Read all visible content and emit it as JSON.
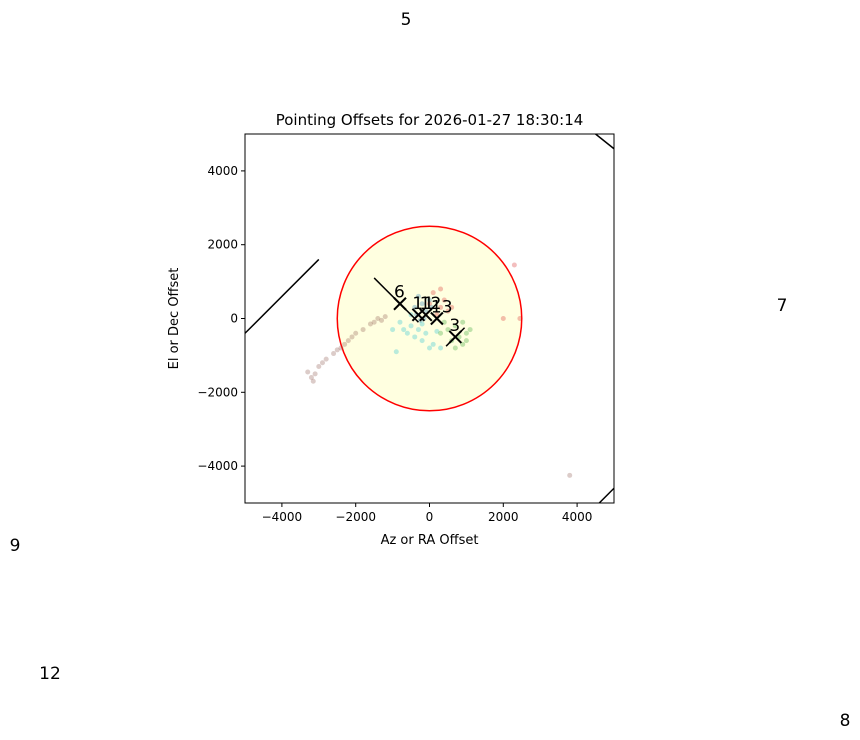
{
  "chart_data": {
    "type": "scatter",
    "title": "Pointing Offsets for 2026-01-27 18:30:14",
    "xlabel": "Az or RA Offset",
    "ylabel": "El or Dec Offset",
    "xlim": [
      -5000,
      5000
    ],
    "ylim": [
      -5000,
      5000
    ],
    "xticks": [
      {
        "value": -4000,
        "label": "−4000"
      },
      {
        "value": -2000,
        "label": "−2000"
      },
      0,
      2000,
      4000
    ],
    "yticks": [
      {
        "value": -4000,
        "label": "−4000"
      },
      {
        "value": -2000,
        "label": "−2000"
      },
      0,
      2000,
      4000
    ],
    "circle": {
      "radius": 2500,
      "color": "#ff0000",
      "fill": "#ffffe0"
    },
    "series": [
      {
        "color": "#8c564b",
        "x": [
          -3200,
          -3100,
          -3000,
          -2900,
          -2800,
          -2600,
          -2500,
          -2400,
          -2300,
          -2200,
          -2100,
          -2000,
          -1800,
          -1600,
          -1500,
          -1400,
          -1300,
          -1200,
          -3300,
          -3150,
          3800
        ],
        "values": [
          -1600,
          -1500,
          -1300,
          -1200,
          -1100,
          -950,
          -850,
          -800,
          -700,
          -600,
          -500,
          -400,
          -300,
          -150,
          -100,
          0,
          -50,
          50,
          -1450,
          -1700,
          -4250
        ]
      },
      {
        "color": "#17becf",
        "x": [
          -800,
          -700,
          -600,
          -500,
          -400,
          -300,
          -200,
          -100,
          0,
          100,
          200,
          -900,
          -1000,
          300,
          -500,
          -200
        ],
        "values": [
          -100,
          -300,
          -400,
          -200,
          -500,
          -300,
          -600,
          -400,
          -800,
          -700,
          -350,
          -900,
          -300,
          -800,
          100,
          -150
        ]
      },
      {
        "color": "#1f77b4",
        "x": [
          -400,
          -300,
          -200,
          -100,
          0,
          -350,
          -150,
          50,
          -250
        ],
        "values": [
          300,
          600,
          400,
          200,
          500,
          100,
          0,
          300,
          -50
        ]
      },
      {
        "color": "#d62728",
        "x": [
          0,
          100,
          300,
          400,
          500,
          200,
          600,
          300,
          2300,
          2000,
          2450
        ],
        "values": [
          400,
          700,
          800,
          500,
          200,
          100,
          300,
          300,
          1450,
          0,
          0
        ]
      },
      {
        "color": "#2ca02c",
        "x": [
          500,
          700,
          800,
          900,
          1000,
          600,
          400,
          1100,
          700,
          900,
          1000,
          300
        ],
        "values": [
          -300,
          -200,
          -500,
          -700,
          -400,
          -600,
          -100,
          -300,
          -800,
          -100,
          -600,
          -400
        ]
      }
    ],
    "markers": [
      {
        "label": "6",
        "x": -800,
        "y": 400
      },
      {
        "label": "11",
        "x": -300,
        "y": 100
      },
      {
        "label": "12",
        "x": -100,
        "y": 100
      },
      {
        "label": "13",
        "x": 200,
        "y": 0
      },
      {
        "label": "3",
        "x": 700,
        "y": -500
      }
    ],
    "lines": [
      {
        "x": [
          -5000,
          -3000
        ],
        "y": [
          -400,
          1600
        ]
      },
      {
        "x": [
          4500,
          5000
        ],
        "y": [
          5000,
          4600
        ]
      },
      {
        "x": [
          4600,
          5000
        ],
        "y": [
          -5000,
          -4600
        ]
      },
      {
        "x": [
          -1500,
          -300
        ],
        "y": [
          1100,
          -100
        ]
      },
      {
        "x": [
          450,
          950
        ],
        "y": [
          -750,
          -250
        ]
      }
    ],
    "annotations": [
      "5",
      "7",
      "9",
      "12",
      "8"
    ]
  }
}
